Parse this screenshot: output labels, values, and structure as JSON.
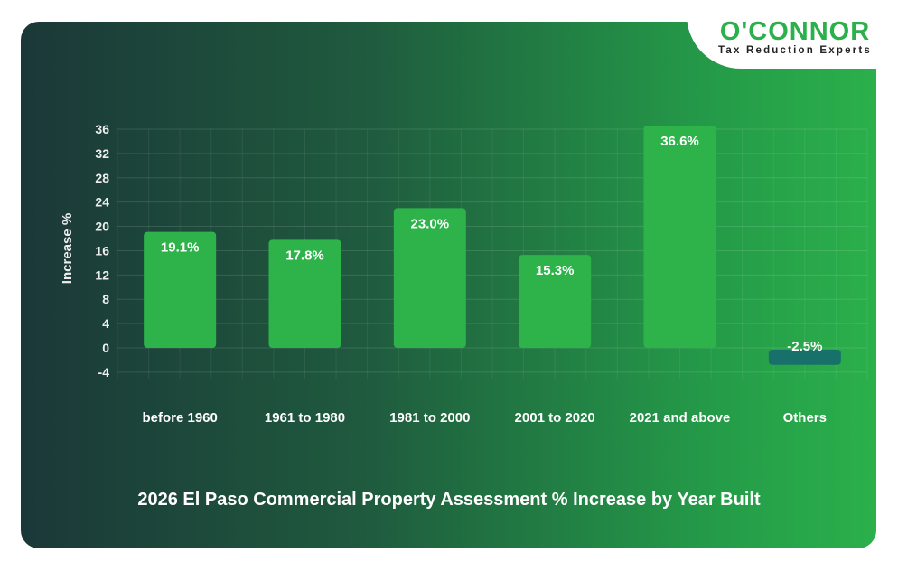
{
  "logo": {
    "brand": "O'CONNOR",
    "tagline": "Tax Reduction Experts"
  },
  "chart_data": {
    "type": "bar",
    "title": "2026 El Paso Commercial Property Assessment % Increase by Year Built",
    "xlabel": "",
    "ylabel": "Increase %",
    "categories": [
      "before 1960",
      "1961 to 1980",
      "1981 to 2000",
      "2001 to 2020",
      "2021 and above",
      "Others"
    ],
    "values": [
      19.1,
      17.8,
      23.0,
      15.3,
      36.6,
      -2.5
    ],
    "data_labels": [
      "19.1%",
      "17.8%",
      "23.0%",
      "15.3%",
      "36.6%",
      "-2.5%"
    ],
    "ylim": [
      -4,
      36
    ],
    "yticks": [
      36,
      32,
      28,
      24,
      20,
      16,
      12,
      8,
      4,
      0,
      -4
    ],
    "grid": true,
    "colors": {
      "positive": "#2db34a",
      "negative": "#17706a"
    }
  }
}
